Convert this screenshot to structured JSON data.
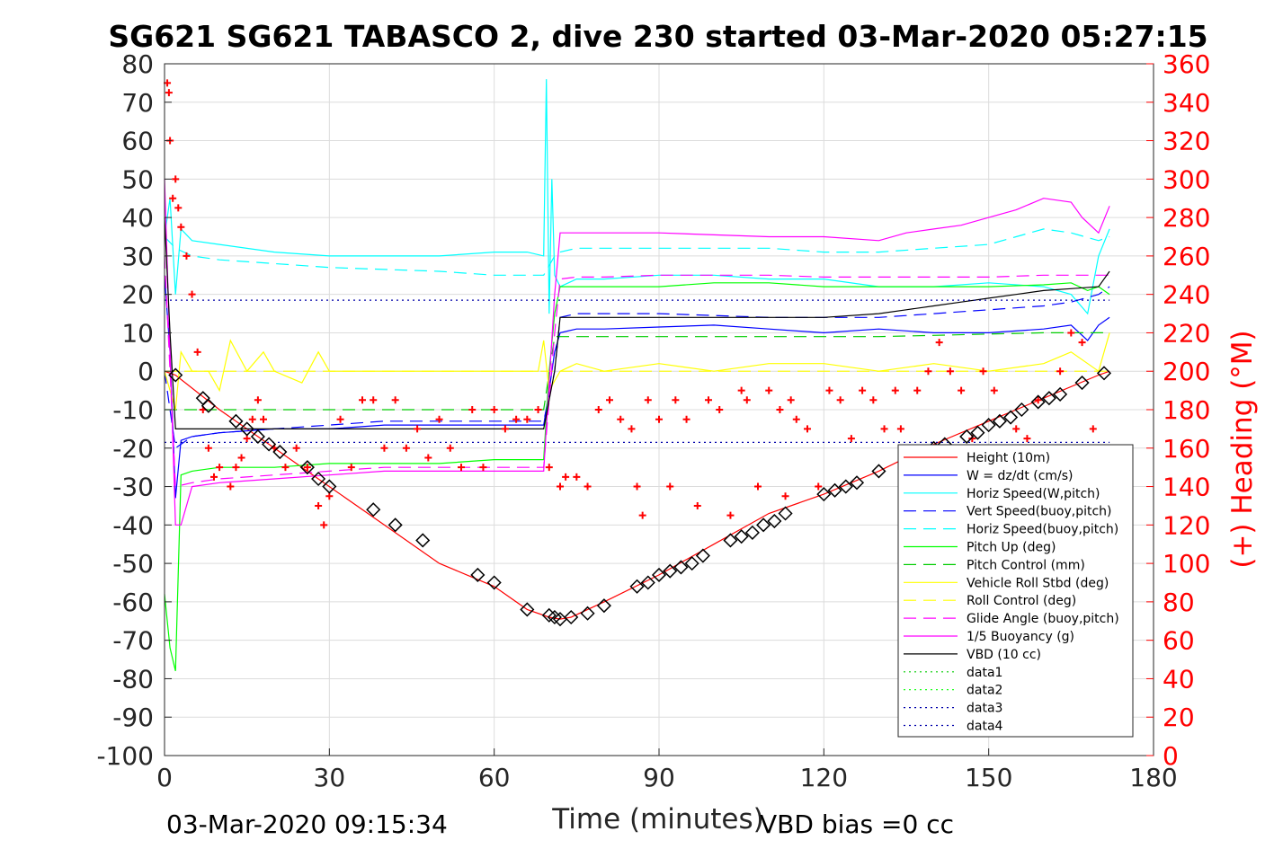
{
  "chart_data": {
    "type": "line",
    "title": "SG621 SG621 TABASCO 2, dive 230 started 03-Mar-2020 05:27:15",
    "xlabel": "Time (minutes)",
    "ylabel_right": "(+) Heading (°M)",
    "footer_left": "03-Mar-2020 09:15:34",
    "footer_right": "VBD bias =0 cc",
    "xlim": [
      0,
      180
    ],
    "ylim": [
      -100,
      80
    ],
    "ylim_right": [
      0,
      360
    ],
    "x_ticks": [
      0,
      30,
      60,
      90,
      120,
      150,
      180
    ],
    "x_tick_labels": [
      "0",
      "30",
      "60",
      "90",
      "120",
      "150",
      "180"
    ],
    "y_ticks": [
      80,
      70,
      60,
      50,
      40,
      30,
      20,
      10,
      0,
      -10,
      -20,
      -30,
      -40,
      -50,
      -60,
      -70,
      -80,
      -90,
      -100
    ],
    "y_tick_labels": [
      "80",
      "70",
      "60",
      "50",
      "40",
      "30",
      "20",
      "10",
      "0",
      "-10",
      "-20",
      "-30",
      "-40",
      "-50",
      "-60",
      "-70",
      "-80",
      "-90",
      "-100"
    ],
    "y_ticks_right": [
      360,
      340,
      320,
      300,
      280,
      260,
      240,
      220,
      200,
      180,
      160,
      140,
      120,
      100,
      80,
      60,
      40,
      20,
      0
    ],
    "y_tick_labels_right": [
      "360",
      "340",
      "320",
      "300",
      "280",
      "260",
      "240",
      "220",
      "200",
      "180",
      "160",
      "140",
      "120",
      "100",
      "80",
      "60",
      "40",
      "20",
      "0"
    ],
    "grid": true,
    "legend_position": "bottom-right",
    "series": [
      {
        "name": "Height (10m)",
        "color": "#ff0000",
        "style": "solid",
        "x": [
          0,
          2,
          10,
          20,
          30,
          40,
          50,
          60,
          66,
          70,
          72,
          74,
          80,
          90,
          100,
          110,
          120,
          130,
          140,
          150,
          160,
          170,
          172
        ],
        "y": [
          0,
          -1,
          -10,
          -20,
          -30,
          -40,
          -50,
          -56,
          -62,
          -64,
          -64.5,
          -64,
          -60,
          -53,
          -45,
          -37,
          -32,
          -26,
          -19,
          -13,
          -7,
          -1,
          0
        ]
      },
      {
        "name": "W = dz/dt (cm/s)",
        "color": "#0000ff",
        "style": "solid",
        "x": [
          0,
          1,
          2,
          3,
          5,
          10,
          20,
          30,
          40,
          50,
          60,
          66,
          69,
          70,
          71,
          72,
          75,
          80,
          90,
          100,
          110,
          120,
          130,
          140,
          150,
          160,
          165,
          168,
          170,
          172
        ],
        "y": [
          25,
          5,
          -33,
          -18,
          -17,
          -16,
          -15,
          -15,
          -14,
          -14,
          -14,
          -14,
          -14,
          -5,
          5,
          10,
          11,
          11,
          11.5,
          12,
          11,
          10,
          11,
          10,
          10,
          11,
          12,
          8,
          12,
          14
        ]
      },
      {
        "name": "Horiz Speed(W,pitch)",
        "color": "#00ffff",
        "style": "solid",
        "x": [
          0,
          1,
          2,
          3,
          5,
          10,
          20,
          30,
          40,
          50,
          60,
          66,
          69,
          69.5,
          70,
          70.5,
          71,
          72,
          75,
          80,
          90,
          100,
          110,
          120,
          130,
          140,
          150,
          160,
          165,
          168,
          170,
          172
        ],
        "y": [
          35,
          45,
          20,
          37,
          34,
          33,
          31,
          30,
          30,
          30,
          31,
          31,
          30,
          76,
          15,
          50,
          25,
          22,
          24,
          24,
          25,
          25,
          24,
          24,
          22,
          22,
          23,
          22,
          20,
          15,
          30,
          37
        ]
      },
      {
        "name": "Vert Speed(buoy,pitch)",
        "color": "#0000ff",
        "style": "dashed",
        "x": [
          0,
          2,
          5,
          10,
          20,
          30,
          40,
          50,
          60,
          66,
          69,
          71,
          72,
          75,
          80,
          90,
          100,
          110,
          120,
          130,
          140,
          150,
          160,
          165,
          170,
          172
        ],
        "y": [
          0,
          -20,
          -17,
          -16,
          -15,
          -14,
          -13,
          -13,
          -13,
          -13,
          -13,
          0,
          14,
          15,
          15,
          15,
          14.5,
          14,
          14,
          14,
          15,
          16,
          17,
          18,
          20,
          22
        ]
      },
      {
        "name": "Horiz Speed(buoy,pitch)",
        "color": "#00ffff",
        "style": "dashed",
        "x": [
          0,
          2,
          5,
          10,
          20,
          30,
          40,
          50,
          60,
          66,
          69,
          71,
          72,
          75,
          80,
          90,
          100,
          110,
          120,
          130,
          140,
          150,
          155,
          160,
          165,
          170,
          172
        ],
        "y": [
          35,
          32,
          30,
          29,
          28,
          27,
          26.5,
          26,
          25,
          25,
          25,
          30,
          31,
          32,
          32,
          32,
          32,
          32,
          31,
          31,
          32,
          33,
          35,
          37,
          36,
          34,
          35
        ]
      },
      {
        "name": "Pitch Up (deg)",
        "color": "#00ff00",
        "style": "solid",
        "x": [
          0,
          1,
          2,
          3,
          5,
          10,
          20,
          30,
          40,
          50,
          60,
          66,
          69,
          70,
          71,
          72,
          75,
          80,
          90,
          100,
          110,
          120,
          130,
          140,
          150,
          160,
          165,
          168,
          170,
          172
        ],
        "y": [
          -58,
          -72,
          -78,
          -27,
          -26,
          -25,
          -25,
          -24,
          -24,
          -24,
          -23,
          -23,
          -23,
          0,
          15,
          22,
          22,
          22,
          22,
          23,
          23,
          22,
          22,
          22,
          22,
          22.5,
          23,
          21,
          22,
          20
        ]
      },
      {
        "name": "Pitch Control (mm)",
        "color": "#00cc00",
        "style": "dashed",
        "x": [
          0,
          2,
          5,
          30,
          60,
          69,
          71,
          72,
          100,
          130,
          160,
          170,
          172
        ],
        "y": [
          -10,
          -10,
          -10,
          -10,
          -10,
          -10,
          9,
          9,
          9,
          9,
          10,
          10,
          10
        ]
      },
      {
        "name": "Vehicle Roll Stbd (deg)",
        "color": "#ffff00",
        "style": "solid",
        "x": [
          0,
          2,
          3,
          5,
          8,
          10,
          12,
          15,
          18,
          20,
          25,
          28,
          30,
          35,
          40,
          45,
          50,
          55,
          60,
          65,
          68,
          69,
          70,
          72,
          75,
          80,
          90,
          100,
          110,
          120,
          130,
          140,
          150,
          160,
          165,
          170,
          172
        ],
        "y": [
          0,
          -10,
          5,
          0,
          0,
          -5,
          8,
          0,
          5,
          0,
          -3,
          5,
          0,
          0,
          0,
          0,
          0,
          0,
          0,
          0,
          0,
          8,
          -5,
          0,
          2,
          0,
          2,
          0,
          2,
          2,
          0,
          2,
          0,
          2,
          5,
          0,
          10
        ]
      },
      {
        "name": "Roll Control (deg)",
        "color": "#ffff00",
        "style": "dashed",
        "x": [
          0,
          2,
          10,
          30,
          60,
          69,
          71,
          100,
          130,
          160,
          172
        ],
        "y": [
          0,
          0,
          0,
          0,
          0,
          0,
          0,
          0,
          0,
          0,
          0
        ]
      },
      {
        "name": "Glide Angle (buoy,pitch)",
        "color": "#ff00ff",
        "style": "dashed",
        "x": [
          0,
          2,
          5,
          10,
          20,
          30,
          40,
          50,
          60,
          66,
          69,
          71,
          72,
          75,
          80,
          90,
          100,
          110,
          120,
          130,
          140,
          150,
          160,
          165,
          170,
          172
        ],
        "y": [
          30,
          -30,
          -29,
          -28,
          -27,
          -26,
          -25,
          -25,
          -25,
          -25,
          -25,
          10,
          24,
          24.5,
          24.5,
          25,
          25,
          25,
          24.5,
          24.5,
          24.5,
          24.5,
          25,
          25,
          25,
          25
        ]
      },
      {
        "name": "1/5 Buoyancy (g)",
        "color": "#ff00ff",
        "style": "solid",
        "x": [
          0,
          2,
          3,
          5,
          10,
          20,
          30,
          40,
          50,
          60,
          66,
          69,
          71,
          72,
          75,
          80,
          90,
          100,
          110,
          120,
          130,
          135,
          140,
          145,
          150,
          155,
          160,
          165,
          167,
          170,
          172
        ],
        "y": [
          50,
          -40,
          -40,
          -30,
          -29,
          -28,
          -27,
          -26,
          -26,
          -26,
          -26,
          -26,
          20,
          36,
          36,
          36,
          36,
          35.5,
          35,
          35,
          34,
          36,
          37,
          38,
          40,
          42,
          45,
          44,
          40,
          36,
          43
        ]
      },
      {
        "name": "VBD (10 cc)",
        "color": "#000000",
        "style": "solid",
        "x": [
          0,
          1,
          2,
          3,
          5,
          10,
          30,
          60,
          69,
          71,
          72,
          75,
          80,
          90,
          100,
          110,
          120,
          130,
          135,
          140,
          145,
          150,
          155,
          160,
          165,
          170,
          172
        ],
        "y": [
          40,
          10,
          -15,
          -15,
          -15,
          -15,
          -15,
          -15,
          -15,
          0,
          14,
          14,
          14,
          14,
          14,
          14,
          14,
          15,
          16,
          17,
          18,
          19,
          20,
          21,
          21.5,
          22,
          26
        ]
      },
      {
        "name": "data1",
        "color": "#00cc00",
        "style": "dotted",
        "x": [],
        "y": []
      },
      {
        "name": "data2",
        "color": "#00ff00",
        "style": "dotted",
        "x": [],
        "y": []
      },
      {
        "name": "data3",
        "color": "#0000aa",
        "style": "dotted",
        "x": [
          0,
          172
        ],
        "y": [
          -18.5,
          -18.5
        ]
      },
      {
        "name": "data4",
        "color": "#0000aa",
        "style": "dotted",
        "x": [
          0,
          172
        ],
        "y": [
          18.5,
          18.5
        ]
      }
    ],
    "heading_series": {
      "color": "#ff0000",
      "marker": "+",
      "axis": "right",
      "x": [
        0.5,
        0.8,
        1,
        1.5,
        2,
        2.5,
        3,
        4,
        5,
        6,
        7,
        8,
        9,
        10,
        12,
        13,
        14,
        15,
        16,
        17,
        18,
        20,
        22,
        24,
        26,
        28,
        29,
        30,
        32,
        34,
        36,
        38,
        40,
        42,
        44,
        46,
        48,
        50,
        52,
        54,
        56,
        58,
        60,
        62,
        64,
        66,
        68,
        70,
        72,
        73,
        75,
        77,
        79,
        81,
        83,
        85,
        86,
        87,
        88,
        90,
        92,
        93,
        95,
        97,
        99,
        101,
        103,
        105,
        106,
        108,
        110,
        112,
        113,
        114,
        115,
        117,
        119,
        121,
        123,
        125,
        127,
        129,
        131,
        133,
        134,
        135,
        137,
        139,
        141,
        143,
        145,
        147,
        149,
        151,
        153,
        155,
        157,
        159,
        161,
        163,
        165,
        167,
        169,
        171
      ],
      "y": [
        350,
        345,
        320,
        290,
        300,
        285,
        275,
        260,
        240,
        210,
        180,
        160,
        145,
        150,
        140,
        150,
        155,
        165,
        175,
        185,
        175,
        160,
        150,
        160,
        150,
        130,
        120,
        135,
        175,
        150,
        185,
        185,
        160,
        185,
        160,
        170,
        155,
        175,
        160,
        150,
        180,
        150,
        180,
        170,
        175,
        175,
        180,
        150,
        140,
        145,
        145,
        140,
        180,
        185,
        175,
        170,
        140,
        125,
        185,
        175,
        140,
        185,
        175,
        130,
        185,
        180,
        125,
        190,
        185,
        140,
        190,
        180,
        135,
        185,
        175,
        170,
        140,
        190,
        185,
        165,
        190,
        185,
        170,
        190,
        170,
        140,
        190,
        200,
        215,
        200,
        190,
        165,
        200,
        190,
        150,
        170,
        165,
        185,
        160,
        200,
        220,
        215,
        170,
        160
      ]
    },
    "markers": {
      "color": "#000000",
      "shape": "diamond",
      "x": [
        2,
        7,
        8,
        13,
        15,
        17,
        19,
        21,
        26,
        28,
        30,
        38,
        42,
        47,
        57,
        60,
        66,
        70,
        71,
        72,
        74,
        77,
        80,
        86,
        88,
        90,
        92,
        94,
        96,
        98,
        103,
        105,
        107,
        109,
        111,
        113,
        120,
        122,
        124,
        126,
        130,
        136,
        140,
        142,
        146,
        148,
        150,
        152,
        154,
        156,
        159,
        161,
        163,
        167,
        171
      ],
      "y": [
        -1,
        -7,
        -9,
        -13,
        -15,
        -17,
        -19,
        -21,
        -25,
        -28,
        -30,
        -36,
        -40,
        -44,
        -53,
        -55,
        -62,
        -63.5,
        -64,
        -64.5,
        -64,
        -63,
        -61,
        -56,
        -55,
        -53,
        -52,
        -51,
        -50,
        -48,
        -44,
        -43,
        -42,
        -40,
        -39,
        -37,
        -32,
        -31,
        -30,
        -29,
        -26,
        -22,
        -20,
        -19,
        -17,
        -16,
        -14,
        -13,
        -12,
        -10,
        -8,
        -7,
        -6,
        -3,
        -0.5
      ]
    },
    "legend": [
      "Height (10m)",
      "W = dz/dt (cm/s)",
      "Horiz Speed(W,pitch)",
      "Vert Speed(buoy,pitch)",
      "Horiz Speed(buoy,pitch)",
      "Pitch Up (deg)",
      "Pitch Control (mm)",
      "Vehicle Roll Stbd (deg)",
      "Roll Control (deg)",
      "Glide Angle (buoy,pitch)",
      "1/5 Buoyancy (g)",
      "VBD (10 cc)",
      "data1",
      "data2",
      "data3",
      "data4"
    ]
  }
}
